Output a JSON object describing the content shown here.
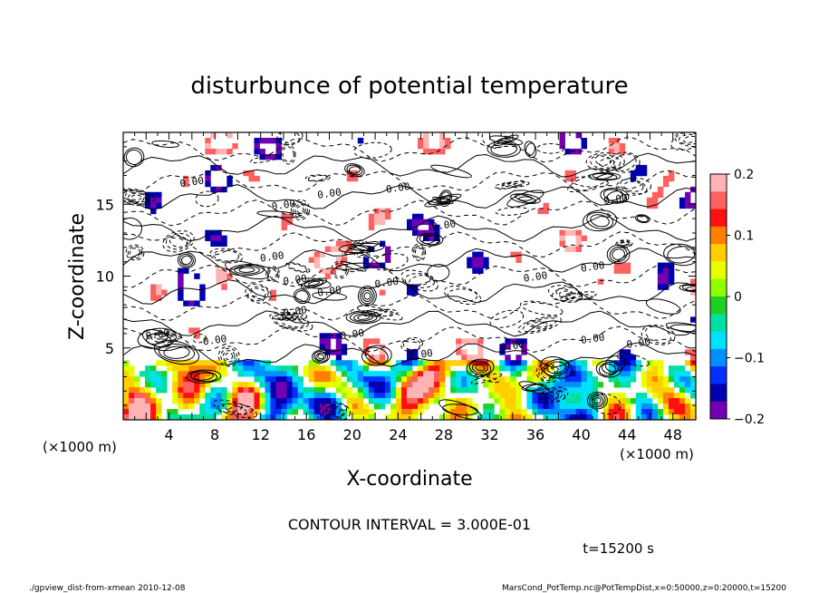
{
  "chart_data": {
    "type": "heatmap",
    "title": "disturbunce of potential temperature",
    "xlabel": "X-coordinate",
    "ylabel": "Z-coordinate",
    "x_unit": "(×1000 m)",
    "y_unit": "(×1000 m)",
    "xlim": [
      0,
      50
    ],
    "ylim": [
      0,
      20
    ],
    "x_ticks": [
      4,
      8,
      12,
      16,
      20,
      24,
      28,
      32,
      36,
      40,
      44,
      48
    ],
    "y_ticks": [
      5,
      10,
      15
    ],
    "colorbar": {
      "ticks": [
        0.2,
        0.1,
        0,
        -0.1,
        -0.2
      ],
      "range": [
        -0.2,
        0.2
      ],
      "colors": [
        "#ffb4b4",
        "#ff6060",
        "#ff1010",
        "#ff8000",
        "#ffd000",
        "#e8ff00",
        "#90ff00",
        "#20d020",
        "#00e0a0",
        "#00e0ff",
        "#0090ff",
        "#0030ff",
        "#0000b0",
        "#7000b0"
      ]
    },
    "contour_label_value": "0.00",
    "contour_interval": "CONTOUR INTERVAL = 3.000E-01",
    "time_label": "t=15200 s"
  },
  "footer": {
    "left": "./gpview_dist-from-xmean   2010-12-08",
    "right": "MarsCond_PotTemp.nc@PotTempDist,x=0:50000,z=0:20000,t=15200"
  }
}
